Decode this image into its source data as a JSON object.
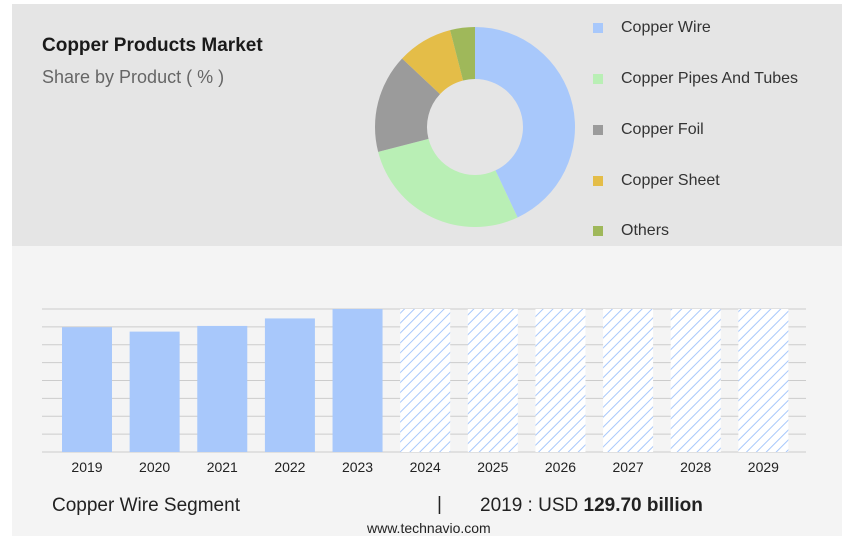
{
  "header": {
    "title": "Copper Products Market",
    "subtitle": "Share by Product ( % )"
  },
  "chart_data": [
    {
      "type": "pie",
      "style": "donut",
      "categories": [
        "Copper Wire",
        "Copper Pipes And Tubes",
        "Copper Foil",
        "Copper Sheet",
        "Others"
      ],
      "values": [
        43,
        28,
        16,
        9,
        4
      ],
      "colors": [
        "#a8c8fb",
        "#b9efb5",
        "#9b9b9b",
        "#e4bd48",
        "#9fb85a"
      ],
      "legend_position": "right"
    },
    {
      "type": "bar",
      "categories": [
        "2019",
        "2020",
        "2021",
        "2022",
        "2023",
        "2024",
        "2025",
        "2026",
        "2027",
        "2028",
        "2029"
      ],
      "values": [
        129.7,
        125.1,
        131.0,
        138.8,
        148.6,
        148.6,
        148.6,
        148.6,
        148.6,
        148.6,
        148.6
      ],
      "forecast_from": "2024",
      "bar_color": "#a8c8fb",
      "forecast_pattern": "hatched",
      "ylim": [
        0,
        148.6
      ],
      "grid": true
    }
  ],
  "footer": {
    "segment_label": "Copper Wire Segment",
    "separator": "|",
    "value_prefix": "2019 : USD ",
    "value_bold": "129.70 billion",
    "source": "www.technavio.com"
  }
}
